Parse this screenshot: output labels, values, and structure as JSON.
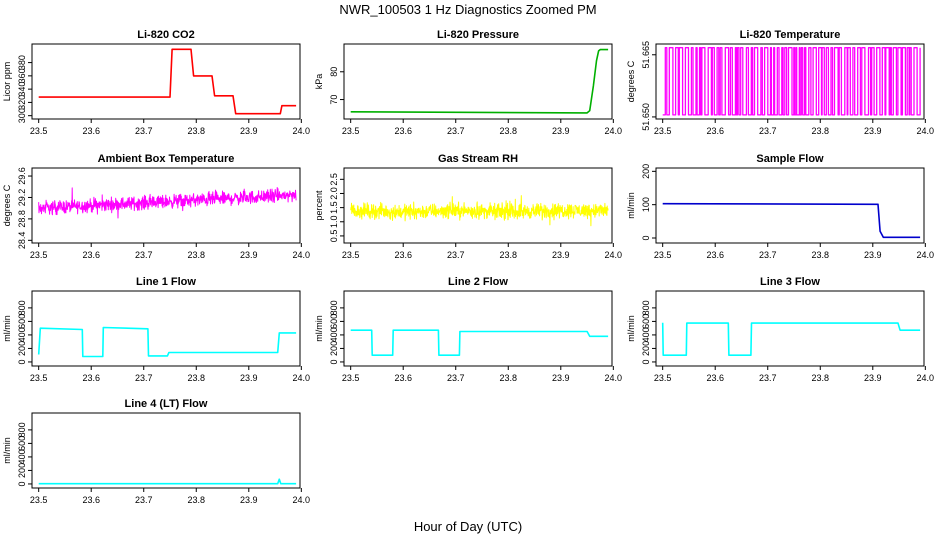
{
  "figure": {
    "title": "NWR_100503  1 Hz Diagnostics Zoomed PM",
    "xlabel": "Hour of Day (UTC)"
  },
  "chart_data": [
    {
      "type": "line",
      "title": "Li-820 CO2",
      "ylabel": "Licor ppm",
      "color": "#ff0000",
      "xlim": [
        23.5,
        24.0
      ],
      "ylim": [
        295,
        408
      ],
      "xticks": [
        "23.5",
        "23.6",
        "23.7",
        "23.8",
        "23.9",
        "24.0"
      ],
      "yticks": [
        300,
        320,
        340,
        360,
        380
      ],
      "style": "steps",
      "x": [
        23.5,
        23.75,
        23.754,
        23.79,
        23.795,
        23.83,
        23.835,
        23.87,
        23.875,
        23.96,
        23.963,
        23.99
      ],
      "y": [
        328,
        328,
        400,
        400,
        360,
        360,
        330,
        330,
        303,
        303,
        315,
        315
      ]
    },
    {
      "type": "line",
      "title": "Li-820 Pressure",
      "ylabel": "kPa",
      "color": "#00b000",
      "xlim": [
        23.5,
        24.0
      ],
      "ylim": [
        63,
        90
      ],
      "xticks": [
        "23.5",
        "23.6",
        "23.7",
        "23.8",
        "23.9",
        "24.0"
      ],
      "yticks": [
        70,
        80
      ],
      "style": "line",
      "x": [
        23.5,
        23.95,
        23.955,
        23.962,
        23.968,
        23.972,
        23.975,
        23.99
      ],
      "y": [
        65.6,
        65.2,
        66,
        75,
        84,
        87.5,
        88,
        88
      ]
    },
    {
      "type": "line",
      "title": "Li-820 Temperature",
      "ylabel": "degrees C",
      "color": "#ff00ff",
      "xlim": [
        23.5,
        24.0
      ],
      "ylim": [
        51.6495,
        51.6676
      ],
      "xticks": [
        "23.5",
        "23.6",
        "23.7",
        "23.8",
        "23.9",
        "24.0"
      ],
      "yticks": [
        "51.650",
        "51.665"
      ],
      "style": "toggle",
      "low": 51.6505,
      "high": 51.6667
    },
    {
      "type": "line",
      "title": "Ambient Box Temperature",
      "ylabel": "degrees C",
      "color": "#ff00ff",
      "xlim": [
        23.5,
        24.0
      ],
      "ylim": [
        28.35,
        29.75
      ],
      "xticks": [
        "23.5",
        "23.6",
        "23.7",
        "23.8",
        "23.9",
        "24.0"
      ],
      "yticks": [
        "28.4",
        "28.8",
        "29.2",
        "29.6"
      ],
      "style": "noise",
      "x": [
        23.5,
        23.6,
        23.7,
        23.8,
        23.9,
        23.99
      ],
      "y": [
        29.0,
        29.05,
        29.1,
        29.15,
        29.2,
        29.25
      ],
      "spread": 0.18
    },
    {
      "type": "line",
      "title": "Gas Stream RH",
      "ylabel": "percent",
      "color": "#ffff00",
      "xlim": [
        23.5,
        24.0
      ],
      "ylim": [
        0.25,
        2.9
      ],
      "xticks": [
        "23.5",
        "23.6",
        "23.7",
        "23.8",
        "23.9",
        "24.0"
      ],
      "yticks": [
        "0.5",
        "1.0",
        "1.5",
        "2.0",
        "2.5"
      ],
      "style": "noise",
      "x": [
        23.5,
        23.6,
        23.7,
        23.8,
        23.9,
        23.99
      ],
      "y": [
        1.4,
        1.35,
        1.4,
        1.35,
        1.4,
        1.4
      ],
      "spread": 0.38
    },
    {
      "type": "line",
      "title": "Sample Flow",
      "ylabel": "ml/min",
      "color": "#0000cc",
      "xlim": [
        23.5,
        24.0
      ],
      "ylim": [
        -15,
        210
      ],
      "xticks": [
        "23.5",
        "23.6",
        "23.7",
        "23.8",
        "23.9",
        "24.0"
      ],
      "yticks": [
        0,
        100,
        200
      ],
      "style": "line",
      "x": [
        23.5,
        23.91,
        23.914,
        23.92,
        23.99
      ],
      "y": [
        103,
        101,
        20,
        2,
        2
      ]
    },
    {
      "type": "line",
      "title": "Line 1 Flow",
      "ylabel": "ml/min",
      "color": "#00ffff",
      "xlim": [
        23.5,
        24.0
      ],
      "ylim": [
        -60,
        1050
      ],
      "xticks": [
        "23.5",
        "23.6",
        "23.7",
        "23.8",
        "23.9",
        "24.0"
      ],
      "yticks": [
        0,
        200,
        400,
        600,
        800
      ],
      "style": "steps",
      "x": [
        23.5,
        23.503,
        23.583,
        23.584,
        23.622,
        23.623,
        23.708,
        23.709,
        23.745,
        23.748,
        23.955,
        23.958,
        23.99
      ],
      "y": [
        110,
        500,
        480,
        80,
        80,
        510,
        490,
        90,
        90,
        140,
        140,
        430,
        430
      ]
    },
    {
      "type": "line",
      "title": "Line 2 Flow",
      "ylabel": "ml/min",
      "color": "#00ffff",
      "xlim": [
        23.5,
        24.0
      ],
      "ylim": [
        -60,
        1050
      ],
      "xticks": [
        "23.5",
        "23.6",
        "23.7",
        "23.8",
        "23.9",
        "24.0"
      ],
      "yticks": [
        0,
        200,
        400,
        600,
        800
      ],
      "style": "steps",
      "x": [
        23.5,
        23.54,
        23.541,
        23.58,
        23.581,
        23.667,
        23.668,
        23.707,
        23.708,
        23.95,
        23.955,
        23.99
      ],
      "y": [
        470,
        470,
        100,
        100,
        470,
        470,
        100,
        100,
        450,
        450,
        380,
        380
      ]
    },
    {
      "type": "line",
      "title": "Line 3 Flow",
      "ylabel": "ml/min",
      "color": "#00ffff",
      "xlim": [
        23.5,
        24.0
      ],
      "ylim": [
        -60,
        1050
      ],
      "xticks": [
        "23.5",
        "23.6",
        "23.7",
        "23.8",
        "23.9",
        "24.0"
      ],
      "yticks": [
        0,
        200,
        400,
        600,
        800
      ],
      "style": "steps",
      "x": [
        23.5,
        23.501,
        23.545,
        23.546,
        23.625,
        23.626,
        23.668,
        23.669,
        23.948,
        23.952,
        23.99
      ],
      "y": [
        580,
        100,
        100,
        575,
        575,
        100,
        100,
        575,
        575,
        470,
        470
      ]
    },
    {
      "type": "line",
      "title": "Line 4 (LT) Flow",
      "ylabel": "ml/min",
      "color": "#00ffff",
      "xlim": [
        23.5,
        24.0
      ],
      "ylim": [
        -60,
        1050
      ],
      "xticks": [
        "23.5",
        "23.6",
        "23.7",
        "23.8",
        "23.9",
        "24.0"
      ],
      "yticks": [
        0,
        200,
        400,
        600,
        800
      ],
      "style": "line",
      "x": [
        23.5,
        23.955,
        23.958,
        23.961,
        23.964,
        23.99
      ],
      "y": [
        4,
        4,
        70,
        4,
        4,
        4
      ]
    }
  ]
}
